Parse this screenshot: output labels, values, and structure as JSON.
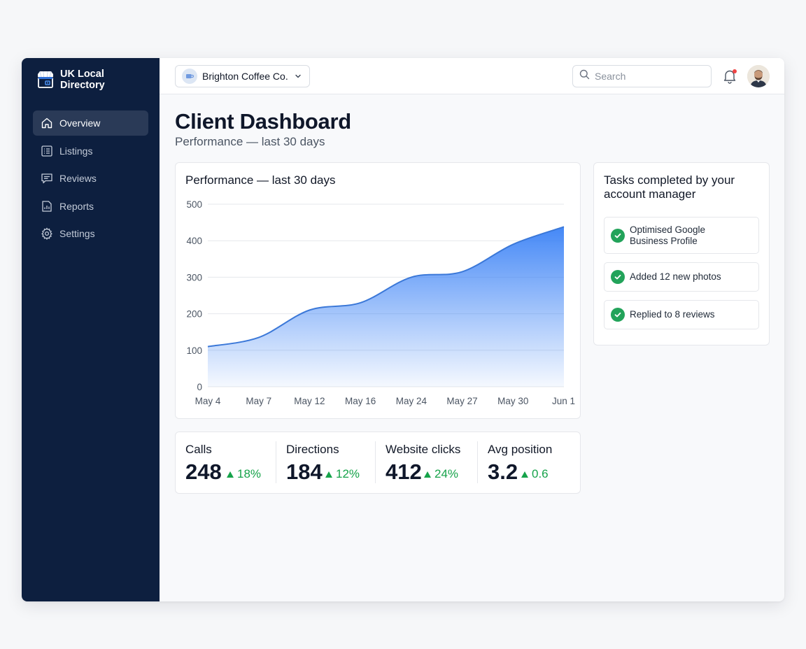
{
  "app": {
    "brand_line1": "UK Local",
    "brand_line2": "Directory"
  },
  "sidebar": {
    "items": [
      {
        "label": "Overview",
        "icon": "home-icon",
        "active": true
      },
      {
        "label": "Listings",
        "icon": "list-icon",
        "active": false
      },
      {
        "label": "Reviews",
        "icon": "message-icon",
        "active": false
      },
      {
        "label": "Reports",
        "icon": "report-icon",
        "active": false
      },
      {
        "label": "Settings",
        "icon": "gear-icon",
        "active": false
      }
    ]
  },
  "topbar": {
    "business": "Brighton Coffee Co.",
    "search_placeholder": "Search",
    "notification_indicator": true
  },
  "page": {
    "title": "Client Dashboard",
    "subtitle": "Performance — last 30 days"
  },
  "chart_card": {
    "title": "Performance — last 30 days"
  },
  "chart_data": {
    "type": "area",
    "title": "Performance — last 30 days",
    "x": [
      "May 4",
      "May 7",
      "May 12",
      "May 16",
      "May 24",
      "May 27",
      "May 30",
      "Jun 1"
    ],
    "series": [
      {
        "values": [
          110,
          135,
          210,
          230,
          300,
          315,
          390,
          438
        ]
      }
    ],
    "ylim": [
      0,
      500
    ],
    "yticks": [
      0,
      100,
      200,
      300,
      400,
      500
    ],
    "grid": true,
    "color": "#3b82f6"
  },
  "tasks": {
    "title": "Tasks completed by your account manager",
    "items": [
      {
        "line1": "Optimised Google",
        "line2": "Business Profile"
      },
      {
        "line1": "Added 12 new photos",
        "line2": ""
      },
      {
        "line1": "Replied to 8 reviews",
        "line2": ""
      }
    ]
  },
  "stats": [
    {
      "label": "Calls",
      "value": "248",
      "delta": "18%"
    },
    {
      "label": "Directions",
      "value": "184",
      "delta": "12%"
    },
    {
      "label": "Website clicks",
      "value": "412",
      "delta": "24%"
    },
    {
      "label": "Avg position",
      "value": "3.2",
      "delta": "0.6"
    }
  ],
  "colors": {
    "sidebar_bg": "#0d1f3f",
    "accent": "#3b82f6",
    "positive": "#16a34a"
  }
}
